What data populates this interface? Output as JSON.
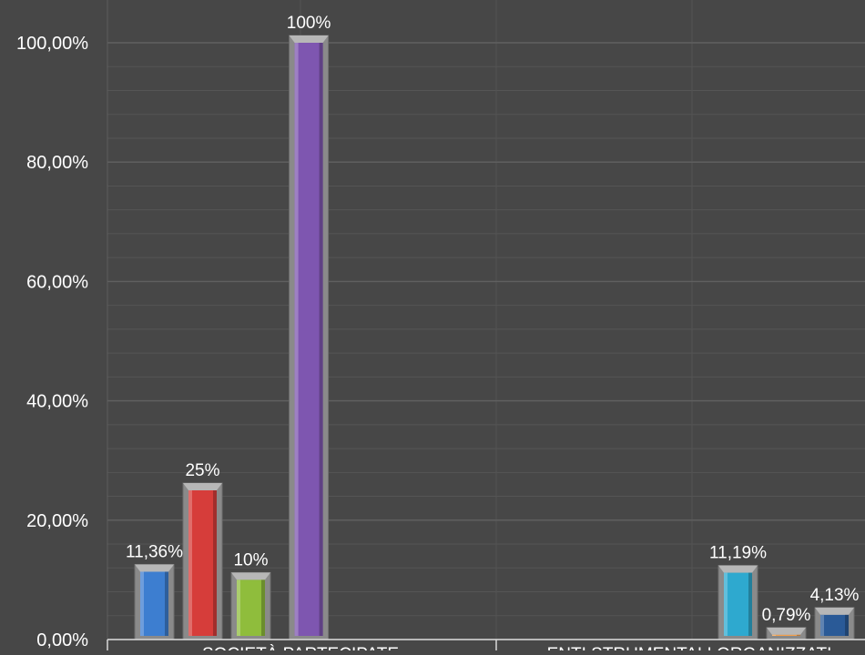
{
  "chart_data": {
    "type": "bar",
    "title": "",
    "xlabel": "",
    "ylabel": "",
    "ylim": [
      0,
      100
    ],
    "grid": true,
    "legend": "none",
    "y_ticks": [
      {
        "value": 0,
        "label": "0,00%"
      },
      {
        "value": 20,
        "label": "20,00%"
      },
      {
        "value": 40,
        "label": "40,00%"
      },
      {
        "value": 60,
        "label": "60,00%"
      },
      {
        "value": 80,
        "label": "80,00%"
      },
      {
        "value": 100,
        "label": "100,00%"
      }
    ],
    "groups": [
      {
        "category": "SOCIETÀ PARTECIPATE",
        "bars": [
          {
            "value": 11.36,
            "label": "11,36%",
            "color": "#3d7ed0"
          },
          {
            "value": 25,
            "label": "25%",
            "color": "#d63d3a"
          },
          {
            "value": 10,
            "label": "10%",
            "color": "#8fbd3c"
          },
          {
            "value": 100,
            "label": "100%",
            "color": "#7e56b0"
          }
        ]
      },
      {
        "category": "ENTI STRUMENTALI ORGANIZZATI",
        "bars": [
          {
            "value": 11.19,
            "label": "11,19%",
            "color": "#2ea9cf"
          },
          {
            "value": 0.79,
            "label": "0,79%",
            "color": "#f5a04a"
          },
          {
            "value": 4.13,
            "label": "4,13%",
            "color": "#2a5a97"
          }
        ]
      }
    ]
  }
}
